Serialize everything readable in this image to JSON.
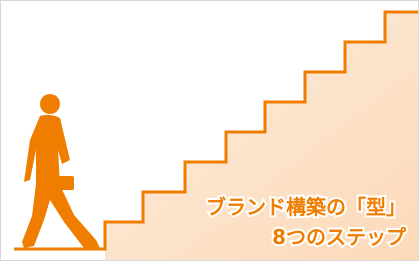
{
  "text": {
    "line1": "ブランド構築の「型」",
    "line2": "8つのステップ"
  }
}
